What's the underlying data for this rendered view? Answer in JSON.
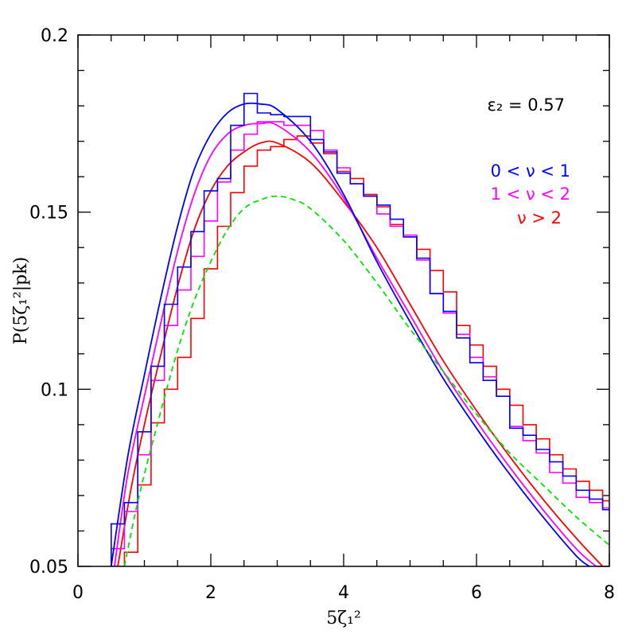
{
  "chart_data": {
    "type": "line",
    "xlabel": "5ζ₁²",
    "ylabel": "P(5ζ₁²|pk)",
    "xlim": [
      0,
      8
    ],
    "ylim": [
      0.05,
      0.2
    ],
    "x_ticks": [
      "0",
      "2",
      "4",
      "6",
      "8"
    ],
    "y_ticks": [
      "0.05",
      "0.1",
      "0.15",
      "0.2"
    ],
    "annotation": "ε₂ = 0.57",
    "legend_position": "top-right",
    "grid": false,
    "bin_width": 0.2,
    "series": [
      {
        "name": "0 < ν < 1",
        "color": "#0000ff",
        "curve": {
          "x": [
            0.5,
            0.75,
            1.0,
            1.25,
            1.5,
            1.75,
            2.0,
            2.25,
            2.5,
            2.75,
            3.0,
            3.5,
            4.0,
            4.5,
            5.0,
            5.5,
            6.0,
            6.5,
            7.0,
            7.5,
            7.7
          ],
          "y": [
            0.05,
            0.081,
            0.104,
            0.126,
            0.146,
            0.162,
            0.172,
            0.178,
            0.1805,
            0.1805,
            0.179,
            0.17,
            0.155,
            0.136,
            0.119,
            0.103,
            0.089,
            0.076,
            0.064,
            0.053,
            0.05
          ]
        },
        "histogram": {
          "x_start": 0.5,
          "y": [
            0.062,
            0.068,
            0.088,
            0.1065,
            0.124,
            0.1345,
            0.1445,
            0.156,
            0.1595,
            0.1745,
            0.1835,
            0.178,
            0.1775,
            0.177,
            0.177,
            0.1705,
            0.167,
            0.161,
            0.158,
            0.1545,
            0.152,
            0.148,
            0.143,
            0.137,
            0.127,
            0.122,
            0.1145,
            0.1075,
            0.1025,
            0.098,
            0.089,
            0.087,
            0.083,
            0.0795,
            0.0755,
            0.0715,
            0.069,
            0.066,
            0.0625,
            0.058,
            0.054,
            0.05
          ]
        }
      },
      {
        "name": "1 < ν < 2",
        "color": "#ff00ff",
        "curve": {
          "x": [
            0.55,
            0.75,
            1.0,
            1.25,
            1.5,
            1.75,
            2.0,
            2.25,
            2.5,
            2.75,
            3.0,
            3.5,
            4.0,
            4.5,
            5.0,
            5.5,
            6.0,
            6.5,
            7.0,
            7.5,
            7.8
          ],
          "y": [
            0.05,
            0.076,
            0.098,
            0.119,
            0.139,
            0.155,
            0.166,
            0.172,
            0.1745,
            0.175,
            0.1745,
            0.167,
            0.154,
            0.137,
            0.121,
            0.105,
            0.091,
            0.078,
            0.066,
            0.055,
            0.05
          ]
        },
        "histogram": {
          "x_start": 0.5,
          "y": [
            0.055,
            0.0655,
            0.0815,
            0.1025,
            0.118,
            0.128,
            0.1375,
            0.1475,
            0.1585,
            0.1675,
            0.172,
            0.1755,
            0.1755,
            0.1745,
            0.1745,
            0.173,
            0.1675,
            0.1625,
            0.158,
            0.1545,
            0.1495,
            0.146,
            0.1435,
            0.1365,
            0.127,
            0.1215,
            0.1155,
            0.109,
            0.1035,
            0.098,
            0.0895,
            0.0855,
            0.082,
            0.0765,
            0.0735,
            0.0695,
            0.068,
            0.0665,
            0.0635,
            0.0595,
            0.056,
            0.052,
            0.05
          ]
        }
      },
      {
        "name": "ν > 2",
        "color": "#ff0000",
        "curve": {
          "x": [
            0.6,
            0.8,
            1.0,
            1.25,
            1.5,
            1.75,
            2.0,
            2.25,
            2.5,
            2.75,
            3.0,
            3.5,
            4.0,
            4.5,
            5.0,
            5.5,
            6.0,
            6.5,
            7.0,
            7.5,
            7.9
          ],
          "y": [
            0.05,
            0.072,
            0.09,
            0.11,
            0.129,
            0.145,
            0.156,
            0.163,
            0.167,
            0.1695,
            0.1695,
            0.164,
            0.153,
            0.14,
            0.124,
            0.108,
            0.094,
            0.081,
            0.069,
            0.058,
            0.05
          ]
        },
        "histogram": {
          "x_start": 0.5,
          "y": [
            0.05,
            0.054,
            0.073,
            0.0905,
            0.1,
            0.109,
            0.12,
            0.134,
            0.146,
            0.1555,
            0.163,
            0.1675,
            0.1685,
            0.1705,
            0.1715,
            0.1695,
            0.1665,
            0.1615,
            0.1595,
            0.155,
            0.1515,
            0.1465,
            0.143,
            0.1395,
            0.1335,
            0.1275,
            0.118,
            0.1125,
            0.1065,
            0.1,
            0.0955,
            0.09,
            0.086,
            0.0815,
            0.0775,
            0.074,
            0.0715,
            0.0685,
            0.066,
            0.062,
            0.058,
            0.055,
            0.053,
            0.05
          ]
        }
      },
      {
        "name": "",
        "color": "#00e600",
        "style": "dashed",
        "curve": {
          "x": [
            0.7,
            0.85,
            1.0,
            1.25,
            1.5,
            1.75,
            2.0,
            2.25,
            2.5,
            2.75,
            3.0,
            3.25,
            3.5,
            4.0,
            4.5,
            5.0,
            5.5,
            6.0,
            6.5,
            7.0,
            7.5,
            8.0
          ],
          "y": [
            0.05,
            0.064,
            0.076,
            0.094,
            0.111,
            0.125,
            0.136,
            0.145,
            0.151,
            0.1535,
            0.1545,
            0.1535,
            0.151,
            0.142,
            0.13,
            0.117,
            0.105,
            0.093,
            0.082,
            0.073,
            0.064,
            0.056
          ]
        }
      }
    ]
  }
}
